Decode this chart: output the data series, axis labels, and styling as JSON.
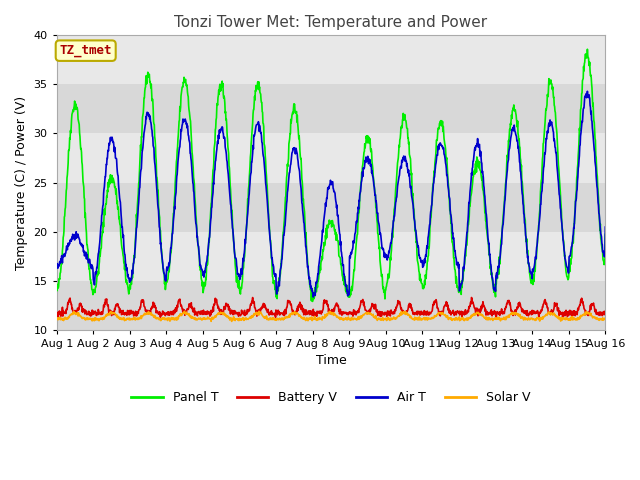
{
  "title": "Tonzi Tower Met: Temperature and Power",
  "xlabel": "Time",
  "ylabel": "Temperature (C) / Power (V)",
  "ylim": [
    10,
    40
  ],
  "xlim": [
    0,
    15
  ],
  "xtick_labels": [
    "Aug 1",
    "Aug 2",
    "Aug 3",
    "Aug 4",
    "Aug 5",
    "Aug 6",
    "Aug 7",
    "Aug 8",
    "Aug 9",
    "Aug 10",
    "Aug 11",
    "Aug 12",
    "Aug 13",
    "Aug 14",
    "Aug 15",
    "Aug 16"
  ],
  "ytick_values": [
    10,
    15,
    20,
    25,
    30,
    35,
    40
  ],
  "legend_entries": [
    "Panel T",
    "Battery V",
    "Air T",
    "Solar V"
  ],
  "colors": {
    "panel_t": "#00ee00",
    "battery_v": "#dd0000",
    "air_t": "#0000cc",
    "solar_v": "#ffaa00"
  },
  "annotation_text": "TZ_tmet",
  "annotation_color": "#aa0000",
  "annotation_bg": "#ffffcc",
  "annotation_border": "#bbaa00",
  "fig_bg": "#ffffff",
  "plot_bg_dark": "#d8d8d8",
  "plot_bg_light": "#e8e8e8",
  "title_fontsize": 11,
  "axis_fontsize": 9,
  "tick_fontsize": 8,
  "legend_fontsize": 9,
  "line_width": 1.2,
  "panel_t_peaks": [
    33,
    25.5,
    36,
    35.5,
    35,
    35.2,
    32.5,
    21,
    29.5,
    31.5,
    31,
    27,
    32.5,
    35.2,
    38,
    37.5
  ],
  "panel_t_mins": [
    14,
    14,
    14.5,
    15,
    14,
    14,
    13.5,
    13.5,
    13.5,
    14.5,
    14,
    14,
    15,
    15,
    16.5,
    19.5
  ],
  "air_t_peaks": [
    19.5,
    29.5,
    32,
    31.5,
    30.5,
    31,
    28.5,
    25,
    27.5,
    27.5,
    29,
    29,
    30.5,
    31,
    34,
    34
  ],
  "air_t_mins": [
    16.5,
    15,
    15,
    16,
    15.5,
    15.5,
    14,
    13.5,
    17.5,
    17,
    16.5,
    14,
    15.5,
    16,
    17.5,
    20.5
  ],
  "battery_base": 11.7,
  "battery_spike": 1.3,
  "solar_base": 11.1,
  "solar_spike": 0.6
}
